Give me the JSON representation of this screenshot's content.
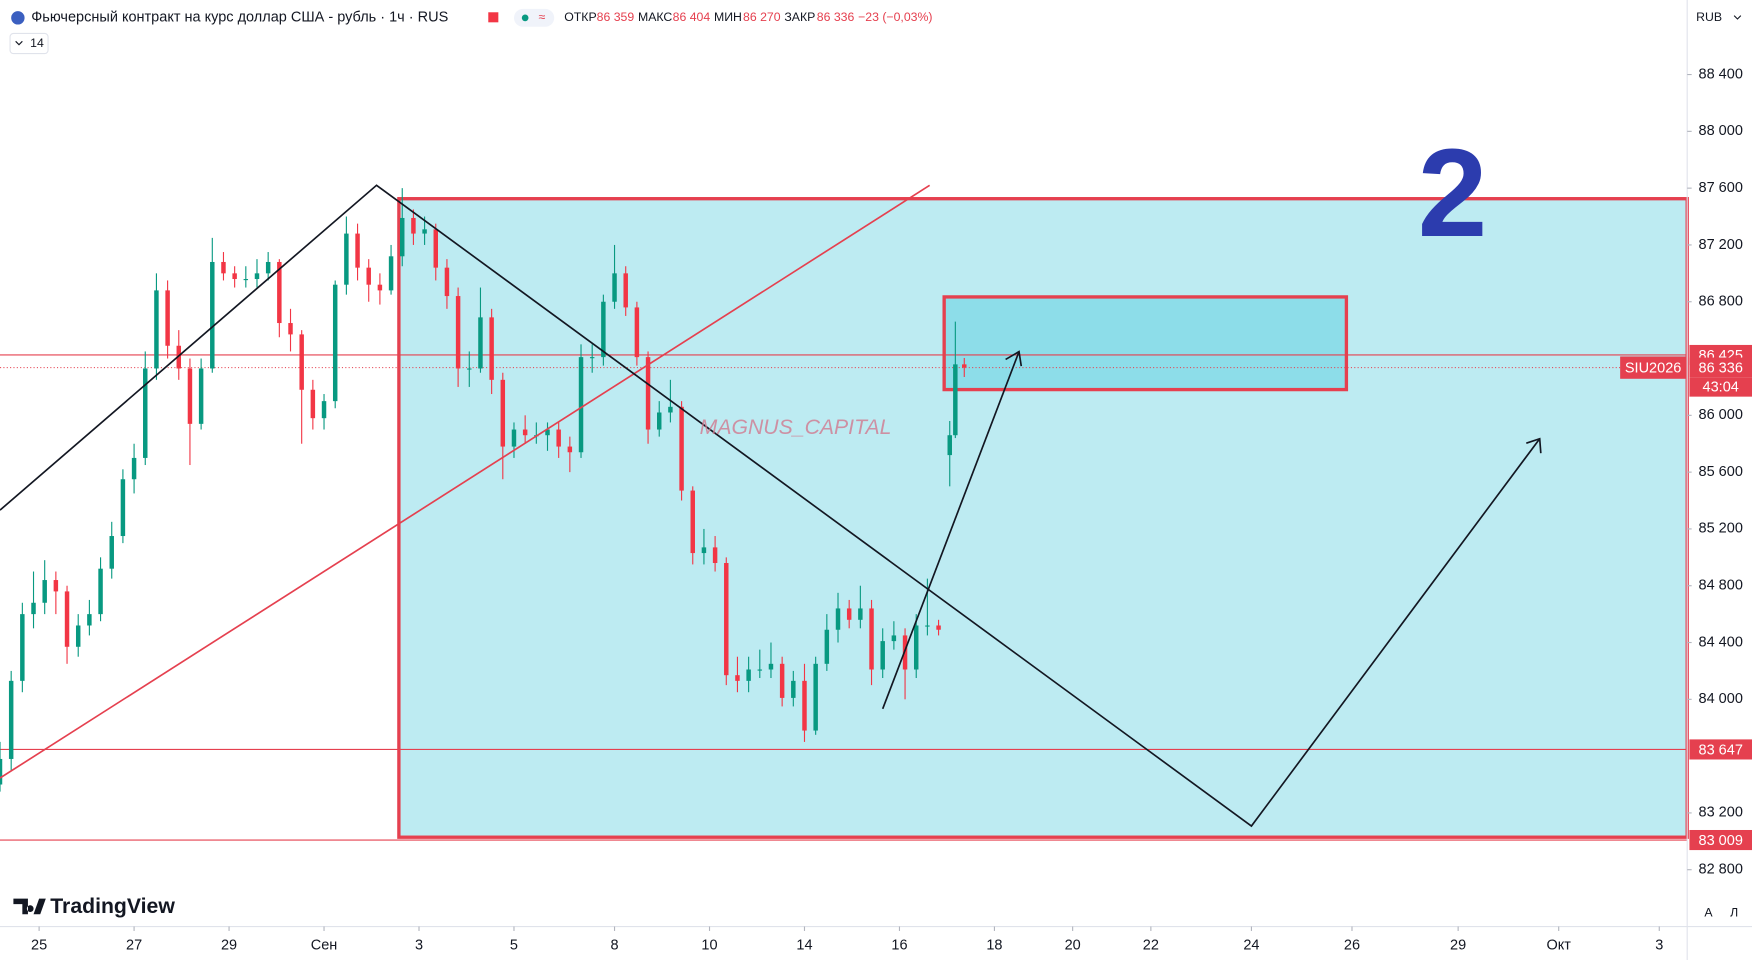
{
  "chart_data": {
    "type": "candlestick",
    "title": "Фьючерсный контракт на курс доллар США - рубль · 1ч · RUS",
    "ohlc_legend": [
      {
        "label": "ОТКР",
        "value": "86 359"
      },
      {
        "label": "МАКС",
        "value": "86 404"
      },
      {
        "label": "МИН",
        "value": "86 270"
      },
      {
        "label": "ЗАКР",
        "value": "86 336"
      }
    ],
    "change": "−23 (−0,03%)",
    "indicators_count": "14",
    "currency": "RUB",
    "symbol": "SIU2026",
    "countdown": "43:04",
    "watermark": "MAGNUS_CAPITAL",
    "annotation": "2",
    "brand": "TradingView",
    "scale_buttons": [
      "A",
      "Л"
    ],
    "up_color": "#089981",
    "down_color": "#f23645",
    "xlim": [
      0,
      302
    ],
    "ylim": [
      82400,
      88925
    ],
    "xticks": [
      {
        "value": 7,
        "label": "25"
      },
      {
        "value": 24,
        "label": "27"
      },
      {
        "value": 41,
        "label": "29"
      },
      {
        "value": 58,
        "label": "Сен"
      },
      {
        "value": 75,
        "label": "3"
      },
      {
        "value": 92,
        "label": "5"
      },
      {
        "value": 110,
        "label": "8"
      },
      {
        "value": 127,
        "label": "10"
      },
      {
        "value": 144,
        "label": "14"
      },
      {
        "value": 161,
        "label": "16"
      },
      {
        "value": 178,
        "label": "18"
      },
      {
        "value": 192,
        "label": "20"
      },
      {
        "value": 206,
        "label": "22"
      },
      {
        "value": 224,
        "label": "24"
      },
      {
        "value": 242,
        "label": "26"
      },
      {
        "value": 261,
        "label": "29"
      },
      {
        "value": 279,
        "label": "Окт"
      },
      {
        "value": 297,
        "label": "3"
      }
    ],
    "yticks": [
      {
        "value": 88400,
        "label": "88 400"
      },
      {
        "value": 88000,
        "label": "88 000"
      },
      {
        "value": 87600,
        "label": "87 600"
      },
      {
        "value": 87200,
        "label": "87 200"
      },
      {
        "value": 86800,
        "label": "86 800"
      },
      {
        "value": 86000,
        "label": "86 000"
      },
      {
        "value": 85600,
        "label": "85 600"
      },
      {
        "value": 85200,
        "label": "85 200"
      },
      {
        "value": 84800,
        "label": "84 800"
      },
      {
        "value": 84400,
        "label": "84 400"
      },
      {
        "value": 84000,
        "label": "84 000"
      },
      {
        "value": 83200,
        "label": "83 200"
      },
      {
        "value": 82800,
        "label": "82 800"
      }
    ],
    "hlines": [
      {
        "value": 86425,
        "label": "86 425",
        "color": "#e5404f"
      },
      {
        "value": 86336,
        "label": "86 336",
        "color": "#e5404f"
      },
      {
        "value": 83647,
        "label": "83 647",
        "color": "#e5404f"
      },
      {
        "value": 83009,
        "label": "83 009",
        "color": "#e5404f"
      }
    ],
    "x": [
      0,
      2,
      4,
      6,
      8,
      10,
      12,
      14,
      16,
      18,
      20,
      22,
      24,
      26,
      28,
      30,
      32,
      34,
      36,
      38,
      40,
      42,
      44,
      46,
      48,
      50,
      52,
      54,
      56,
      58,
      60,
      62,
      64,
      66,
      68,
      70,
      72,
      74,
      76,
      78,
      80,
      82,
      84,
      86,
      88,
      90,
      92,
      94,
      96,
      98,
      100,
      102,
      104,
      106,
      108,
      110,
      112,
      114,
      116,
      118,
      120,
      122,
      124,
      126,
      128,
      130,
      132,
      134,
      136,
      138,
      140,
      142,
      144,
      146,
      148,
      150,
      152,
      154,
      156,
      158,
      160,
      162,
      164,
      166,
      168,
      170,
      171,
      172.6
    ],
    "ohlc": [
      [
        83400,
        83700,
        83350,
        83580
      ],
      [
        83580,
        84200,
        83500,
        84130
      ],
      [
        84130,
        84680,
        84050,
        84600
      ],
      [
        84600,
        84900,
        84500,
        84680
      ],
      [
        84680,
        84980,
        84600,
        84840
      ],
      [
        84840,
        84900,
        84600,
        84760
      ],
      [
        84760,
        84800,
        84250,
        84370
      ],
      [
        84370,
        84600,
        84300,
        84520
      ],
      [
        84520,
        84700,
        84450,
        84600
      ],
      [
        84600,
        85000,
        84550,
        84920
      ],
      [
        84920,
        85250,
        84850,
        85150
      ],
      [
        85150,
        85620,
        85100,
        85550
      ],
      [
        85550,
        85800,
        85450,
        85700
      ],
      [
        85700,
        86450,
        85650,
        86330
      ],
      [
        86330,
        87000,
        86250,
        86880
      ],
      [
        86880,
        86950,
        86400,
        86490
      ],
      [
        86490,
        86600,
        86250,
        86330
      ],
      [
        86330,
        86400,
        85650,
        85940
      ],
      [
        85940,
        86400,
        85900,
        86330
      ],
      [
        86330,
        87250,
        86300,
        87080
      ],
      [
        87080,
        87150,
        86950,
        87000
      ],
      [
        87000,
        87050,
        86900,
        86960
      ],
      [
        86960,
        87050,
        86900,
        86960
      ],
      [
        86960,
        87100,
        86900,
        87000
      ],
      [
        87000,
        87150,
        86950,
        87080
      ],
      [
        87080,
        87100,
        86550,
        86650
      ],
      [
        86650,
        86750,
        86450,
        86570
      ],
      [
        86570,
        86600,
        85800,
        86180
      ],
      [
        86180,
        86250,
        85900,
        85980
      ],
      [
        85980,
        86150,
        85900,
        86100
      ],
      [
        86100,
        86950,
        86050,
        86920
      ],
      [
        86920,
        87400,
        86850,
        87280
      ],
      [
        87280,
        87350,
        86950,
        87040
      ],
      [
        87040,
        87100,
        86800,
        86920
      ],
      [
        86920,
        87000,
        86780,
        86880
      ],
      [
        86880,
        87200,
        86850,
        87120
      ],
      [
        87120,
        87600,
        87050,
        87390
      ],
      [
        87390,
        87450,
        87200,
        87280
      ],
      [
        87280,
        87400,
        87200,
        87310
      ],
      [
        87310,
        87350,
        86950,
        87040
      ],
      [
        87040,
        87100,
        86750,
        86840
      ],
      [
        86840,
        86900,
        86200,
        86330
      ],
      [
        86330,
        86450,
        86200,
        86330
      ],
      [
        86330,
        86900,
        86300,
        86690
      ],
      [
        86690,
        86750,
        86150,
        86250
      ],
      [
        86250,
        86300,
        85550,
        85780
      ],
      [
        85780,
        85950,
        85700,
        85900
      ],
      [
        85900,
        86000,
        85800,
        85860
      ],
      [
        85860,
        85950,
        85800,
        85860
      ],
      [
        85860,
        85950,
        85750,
        85900
      ],
      [
        85900,
        85950,
        85700,
        85780
      ],
      [
        85780,
        85850,
        85600,
        85740
      ],
      [
        85740,
        86500,
        85700,
        86410
      ],
      [
        86410,
        86500,
        86300,
        86410
      ],
      [
        86410,
        86850,
        86350,
        86800
      ],
      [
        86800,
        87200,
        86750,
        87000
      ],
      [
        87000,
        87050,
        86700,
        86760
      ],
      [
        86760,
        86800,
        86350,
        86410
      ],
      [
        86410,
        86450,
        85800,
        85900
      ],
      [
        85900,
        86100,
        85850,
        86020
      ],
      [
        86020,
        86250,
        85950,
        86060
      ],
      [
        86060,
        86100,
        85400,
        85470
      ],
      [
        85470,
        85500,
        84950,
        85030
      ],
      [
        85030,
        85200,
        84950,
        85070
      ],
      [
        85070,
        85150,
        84900,
        84960
      ],
      [
        84960,
        85000,
        84100,
        84170
      ],
      [
        84170,
        84300,
        84050,
        84130
      ],
      [
        84130,
        84300,
        84050,
        84210
      ],
      [
        84210,
        84350,
        84150,
        84210
      ],
      [
        84210,
        84400,
        84150,
        84250
      ],
      [
        84250,
        84300,
        83950,
        84010
      ],
      [
        84010,
        84200,
        83950,
        84130
      ],
      [
        84130,
        84250,
        83700,
        83780
      ],
      [
        83780,
        84300,
        83750,
        84250
      ],
      [
        84250,
        84600,
        84200,
        84490
      ],
      [
        84490,
        84750,
        84400,
        84640
      ],
      [
        84640,
        84700,
        84500,
        84560
      ],
      [
        84560,
        84800,
        84500,
        84640
      ],
      [
        84640,
        84700,
        84100,
        84210
      ],
      [
        84210,
        84500,
        84150,
        84410
      ],
      [
        84410,
        84550,
        84350,
        84450
      ],
      [
        84450,
        84500,
        84000,
        84210
      ],
      [
        84210,
        84600,
        84150,
        84520
      ],
      [
        84520,
        84850,
        84450,
        84520
      ],
      [
        84520,
        84560,
        84450,
        84490
      ],
      [
        85720,
        85960,
        85500,
        85860
      ],
      [
        85860,
        86660,
        85840,
        86359
      ],
      [
        86359,
        86404,
        86270,
        86336
      ]
    ]
  }
}
